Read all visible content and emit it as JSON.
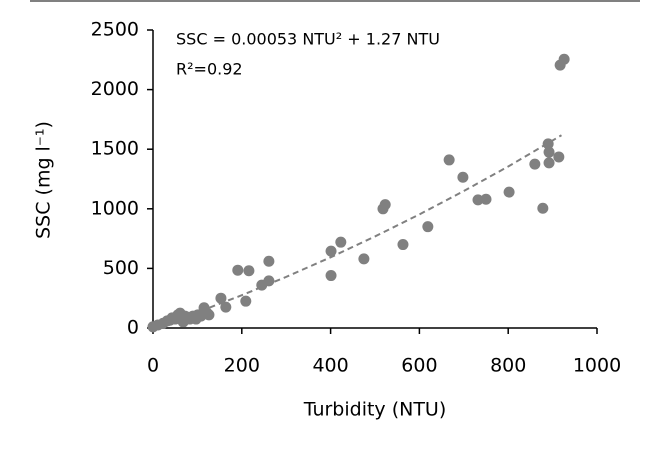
{
  "chart_data": {
    "type": "scatter",
    "x_label": "Turbidity (NTU)",
    "y_label": "SSC (mg l⁻¹)",
    "annotations": [
      "SSC = 0.00053 NTU² + 1.27 NTU",
      "R²=0.92"
    ],
    "xlim": [
      0,
      1000
    ],
    "ylim": [
      0,
      2500
    ],
    "xticks": [
      0,
      200,
      400,
      600,
      800,
      1000
    ],
    "yticks": [
      0,
      500,
      1000,
      1500,
      2000,
      2500
    ],
    "color": "#808080",
    "x": [
      0,
      11,
      23,
      32,
      38,
      43,
      50,
      56,
      61,
      68,
      72,
      79,
      83,
      90,
      97,
      101,
      108,
      115,
      122,
      126,
      153,
      164,
      191,
      209,
      216,
      245,
      261,
      261,
      401,
      401,
      423,
      475,
      518,
      523,
      563,
      619,
      667,
      698,
      732,
      750,
      802,
      860,
      878,
      890,
      892,
      892,
      914,
      917,
      926
    ],
    "values": [
      10,
      25,
      40,
      60,
      65,
      85,
      75,
      110,
      125,
      50,
      100,
      90,
      75,
      100,
      75,
      110,
      100,
      170,
      125,
      110,
      250,
      175,
      485,
      225,
      480,
      360,
      395,
      560,
      645,
      440,
      720,
      580,
      1000,
      1035,
      700,
      850,
      1410,
      1265,
      1075,
      1080,
      1140,
      1375,
      1005,
      1545,
      1475,
      1385,
      1435,
      2205,
      2255
    ],
    "trendline": {
      "color": "#808080",
      "x": [
        0,
        100,
        200,
        300,
        400,
        500,
        600,
        700,
        800,
        920
      ],
      "values": [
        0,
        132,
        275,
        429,
        593,
        768,
        953,
        1149,
        1355,
        1617
      ]
    }
  }
}
